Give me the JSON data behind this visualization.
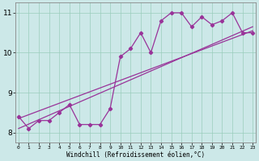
{
  "xlabel": "Windchill (Refroidissement éolien,°C)",
  "bg_color": "#cce8e8",
  "line_color": "#993399",
  "x_data": [
    0,
    1,
    2,
    3,
    4,
    5,
    6,
    7,
    8,
    9,
    10,
    11,
    12,
    13,
    14,
    15,
    16,
    17,
    18,
    19,
    20,
    21,
    22,
    23
  ],
  "y_main": [
    8.4,
    8.1,
    8.3,
    8.3,
    8.5,
    8.7,
    8.2,
    8.2,
    8.2,
    8.6,
    9.9,
    10.1,
    10.5,
    10.0,
    10.8,
    11.0,
    11.0,
    10.65,
    10.9,
    10.7,
    10.8,
    11.0,
    10.5,
    10.5
  ],
  "trend1_x": [
    0,
    23
  ],
  "trend1_y": [
    8.35,
    10.55
  ],
  "trend2_x": [
    0,
    23
  ],
  "trend2_y": [
    8.1,
    10.65
  ],
  "ylim": [
    7.75,
    11.25
  ],
  "xlim": [
    -0.3,
    23.3
  ],
  "yticks": [
    8,
    9,
    10,
    11
  ],
  "xticks": [
    0,
    1,
    2,
    3,
    4,
    5,
    6,
    7,
    8,
    9,
    10,
    11,
    12,
    13,
    14,
    15,
    16,
    17,
    18,
    19,
    20,
    21,
    22,
    23
  ],
  "grid_color": "#99ccbb",
  "grid_alpha": 0.8,
  "spine_color": "#888888"
}
